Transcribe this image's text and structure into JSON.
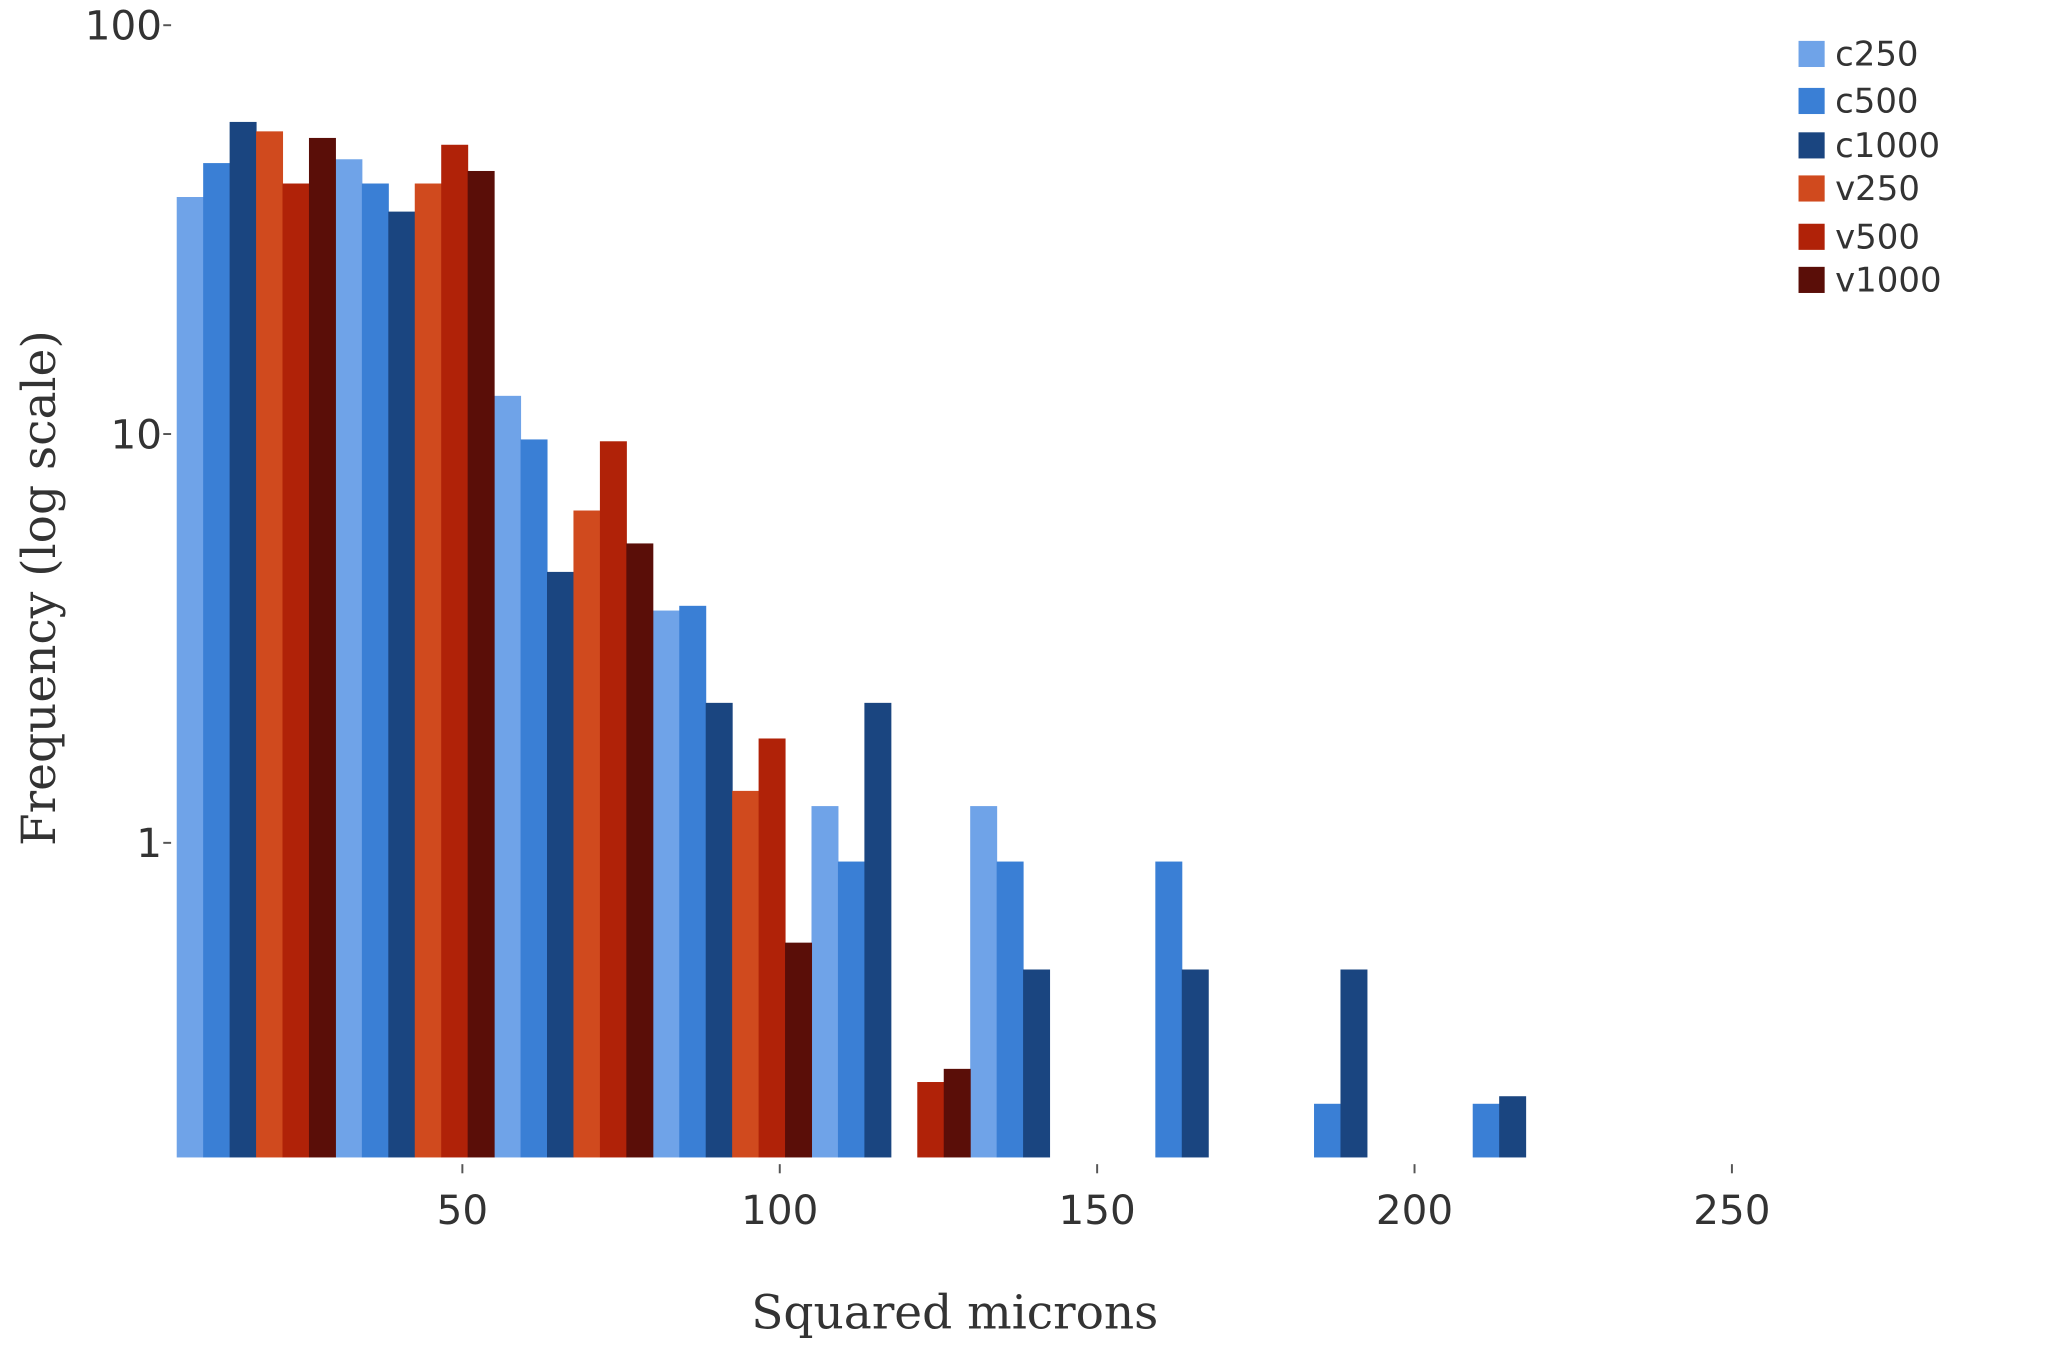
{
  "chart_data": {
    "type": "bar",
    "title": "",
    "xlabel": "Squared microns",
    "ylabel": "Frequency (log scale)",
    "y_scale": "log",
    "ylim": [
      0.17,
      100
    ],
    "xlim": [
      0,
      290
    ],
    "grid": false,
    "legend_position": "top-right",
    "x_ticks": [
      50,
      100,
      150,
      200,
      250
    ],
    "x_tick_labels": [
      "50",
      "100",
      "150",
      "200",
      "250"
    ],
    "y_ticks": [
      1,
      10,
      100
    ],
    "y_tick_labels": [
      "1",
      "10",
      "100"
    ],
    "bin_edges": [
      5,
      30,
      55,
      80,
      105,
      130,
      155,
      180,
      205,
      230
    ],
    "series": [
      {
        "name": "c250",
        "color": "#6fa3e8",
        "values": [
          38,
          47,
          12.4,
          3.7,
          1.23,
          1.23,
          null,
          null,
          null
        ]
      },
      {
        "name": "c500",
        "color": "#3a7fd5",
        "values": [
          46,
          41,
          9.7,
          3.8,
          0.9,
          0.9,
          0.9,
          0.23,
          0.23
        ]
      },
      {
        "name": "c1000",
        "color": "#1a4580",
        "values": [
          58,
          35,
          4.6,
          2.2,
          2.2,
          0.49,
          0.49,
          0.49,
          0.24
        ]
      },
      {
        "name": "v250",
        "color": "#d04a1e",
        "values": [
          55,
          41,
          6.5,
          1.34,
          null,
          null,
          null,
          null,
          null
        ]
      },
      {
        "name": "v500",
        "color": "#b02208",
        "values": [
          41,
          51,
          9.6,
          1.8,
          0.26,
          null,
          null,
          null,
          null
        ]
      },
      {
        "name": "v1000",
        "color": "#5a0e08",
        "values": [
          53,
          44,
          5.4,
          0.57,
          0.28,
          null,
          null,
          null,
          null
        ]
      }
    ]
  }
}
